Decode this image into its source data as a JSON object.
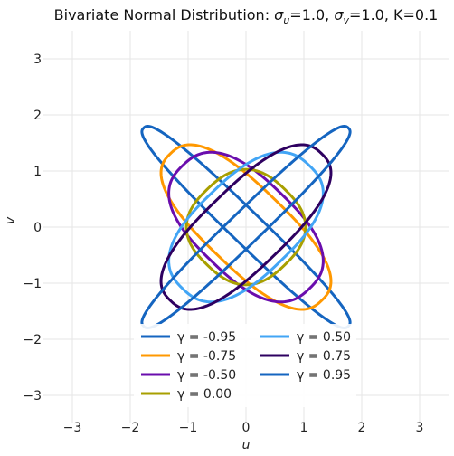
{
  "chart_data": {
    "type": "line",
    "title_prefix": "Bivariate Normal Distribution: ",
    "title_sigma_u_value": "=1.0, ",
    "title_sigma_v_value": "=1.0, K=0.1",
    "title_sigma_symbol": "σ",
    "title_sub_u": "u",
    "title_sub_v": "v",
    "xlabel": "u",
    "ylabel": "v",
    "xlim": [
      -3.5,
      3.5
    ],
    "ylim": [
      -3.5,
      3.5
    ],
    "x_ticks": [
      -3,
      -2,
      -1,
      0,
      1,
      2,
      3
    ],
    "y_ticks": [
      -3,
      -2,
      -1,
      0,
      1,
      2,
      3
    ],
    "x_tick_labels": [
      "−3",
      "−2",
      "−1",
      "0",
      "1",
      "2",
      "3"
    ],
    "y_tick_labels": [
      "−3",
      "−2",
      "−1",
      "0",
      "1",
      "2",
      "3"
    ],
    "grid": true,
    "legend_placement": "bottom-center",
    "superellipse_exponent": 2.6,
    "series": [
      {
        "name": "γ = -0.95",
        "gamma": -0.95,
        "color": "#1565c0",
        "semi_axis_major": 2.5,
        "semi_axis_minor": 0.28
      },
      {
        "name": "γ = -0.75",
        "gamma": -0.75,
        "color": "#ff9800",
        "semi_axis_major": 1.85,
        "semi_axis_minor": 0.7
      },
      {
        "name": "γ = -0.50",
        "gamma": -0.5,
        "color": "#6a0dad",
        "semi_axis_major": 1.55,
        "semi_axis_minor": 0.85
      },
      {
        "name": "γ = 0.00",
        "gamma": 0.0,
        "color": "#a89f00",
        "semi_axis_major": 0.95,
        "semi_axis_minor": 0.95
      },
      {
        "name": "γ = 0.50",
        "gamma": 0.5,
        "color": "#42a5f5",
        "semi_axis_major": 1.55,
        "semi_axis_minor": 0.85
      },
      {
        "name": "γ = 0.75",
        "gamma": 0.75,
        "color": "#2e0060",
        "semi_axis_major": 1.85,
        "semi_axis_minor": 0.7
      },
      {
        "name": "γ = 0.95",
        "gamma": 0.95,
        "color": "#1565c0",
        "semi_axis_major": 2.5,
        "semi_axis_minor": 0.28
      }
    ]
  }
}
